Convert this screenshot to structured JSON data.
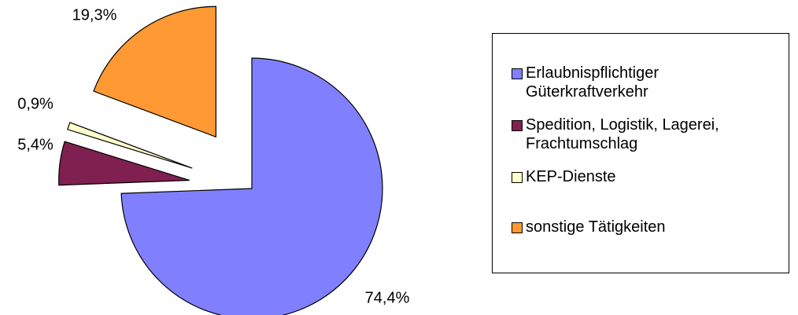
{
  "chart_data": {
    "type": "pie",
    "series": [
      {
        "name": "Erlaubnispflichtiger Güterkraftverkehr",
        "color": "#8080ff"
      },
      {
        "name": "Spedition, Logistik, Lagerei, Frachtumschlag",
        "color": "#802050"
      },
      {
        "name": "KEP-Dienste",
        "color": "#ffffcc"
      },
      {
        "name": "sonstige Tätigkeiten",
        "color": "#ff9933"
      }
    ],
    "values": [
      74.4,
      5.4,
      0.9,
      19.3
    ],
    "value_labels": [
      "74,4%",
      "5,4%",
      "0,9%",
      "19,3%"
    ],
    "legend": "right"
  }
}
